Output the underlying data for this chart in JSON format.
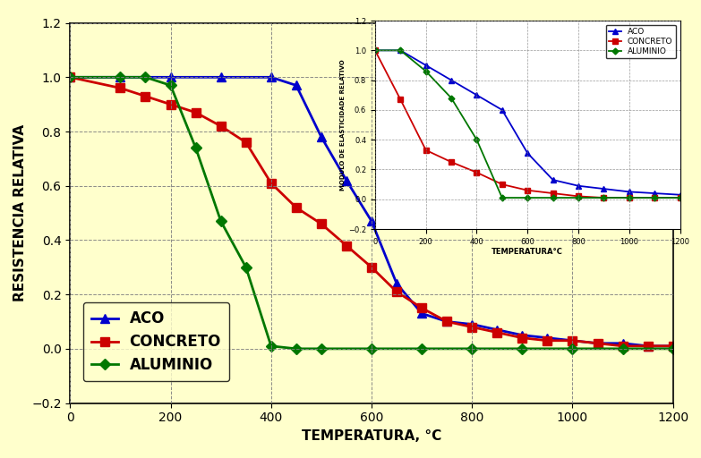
{
  "bg_color": "#FFFFCC",
  "xlabel": "TEMPERATURA, °C",
  "ylabel": "RESISTENCIA RELATIVA",
  "xlim": [
    0,
    1200
  ],
  "ylim": [
    -0.2,
    1.2
  ],
  "xticks": [
    0,
    200,
    400,
    600,
    800,
    1000,
    1200
  ],
  "yticks": [
    -0.2,
    0.0,
    0.2,
    0.4,
    0.6,
    0.8,
    1.0,
    1.2
  ],
  "aco_x": [
    0,
    100,
    200,
    300,
    400,
    450,
    500,
    550,
    600,
    650,
    700,
    750,
    800,
    850,
    900,
    950,
    1000,
    1050,
    1100,
    1150,
    1200
  ],
  "aco_y": [
    1.0,
    1.0,
    1.0,
    1.0,
    1.0,
    0.97,
    0.78,
    0.62,
    0.47,
    0.24,
    0.13,
    0.1,
    0.09,
    0.07,
    0.05,
    0.04,
    0.03,
    0.02,
    0.02,
    0.01,
    0.01
  ],
  "concreto_x": [
    0,
    100,
    150,
    200,
    250,
    300,
    350,
    400,
    450,
    500,
    550,
    600,
    650,
    700,
    750,
    800,
    850,
    900,
    950,
    1000,
    1050,
    1100,
    1150,
    1200
  ],
  "concreto_y": [
    1.0,
    0.96,
    0.93,
    0.9,
    0.87,
    0.82,
    0.76,
    0.61,
    0.52,
    0.46,
    0.38,
    0.3,
    0.21,
    0.15,
    0.1,
    0.08,
    0.06,
    0.04,
    0.03,
    0.03,
    0.02,
    0.01,
    0.01,
    0.01
  ],
  "aluminio_x": [
    0,
    100,
    150,
    200,
    250,
    300,
    350,
    400,
    450,
    500,
    600,
    700,
    800,
    900,
    1000,
    1100,
    1200
  ],
  "aluminio_y": [
    1.0,
    1.0,
    1.0,
    0.97,
    0.74,
    0.47,
    0.3,
    0.01,
    0.0,
    0.0,
    0.0,
    0.0,
    0.0,
    0.0,
    0.0,
    0.0,
    0.0
  ],
  "aco_color": "#0000CC",
  "concreto_color": "#CC0000",
  "aluminio_color": "#007700",
  "inset_xlabel": "TEMPERATURA°C",
  "inset_ylabel": "MODULO DE ELASTICIDADE RELATIVO",
  "inset_aco_x": [
    0,
    100,
    200,
    300,
    400,
    500,
    600,
    700,
    800,
    900,
    1000,
    1100,
    1200
  ],
  "inset_aco_y": [
    1.0,
    1.0,
    0.9,
    0.8,
    0.7,
    0.6,
    0.31,
    0.13,
    0.09,
    0.07,
    0.05,
    0.04,
    0.03
  ],
  "inset_concreto_x": [
    0,
    100,
    200,
    300,
    400,
    500,
    600,
    700,
    800,
    900,
    1000,
    1100,
    1200
  ],
  "inset_concreto_y": [
    1.0,
    0.67,
    0.33,
    0.25,
    0.18,
    0.1,
    0.06,
    0.04,
    0.02,
    0.01,
    0.01,
    0.01,
    0.01
  ],
  "inset_aluminio_x": [
    0,
    100,
    200,
    300,
    400,
    500,
    600,
    700,
    800,
    900,
    1000,
    1100,
    1200
  ],
  "inset_aluminio_y": [
    1.0,
    1.0,
    0.86,
    0.68,
    0.4,
    0.01,
    0.01,
    0.01,
    0.01,
    0.01,
    0.01,
    0.01,
    0.01
  ],
  "legend_labels": [
    "ACO",
    "CONCRETO",
    "ALUMINIO"
  ]
}
